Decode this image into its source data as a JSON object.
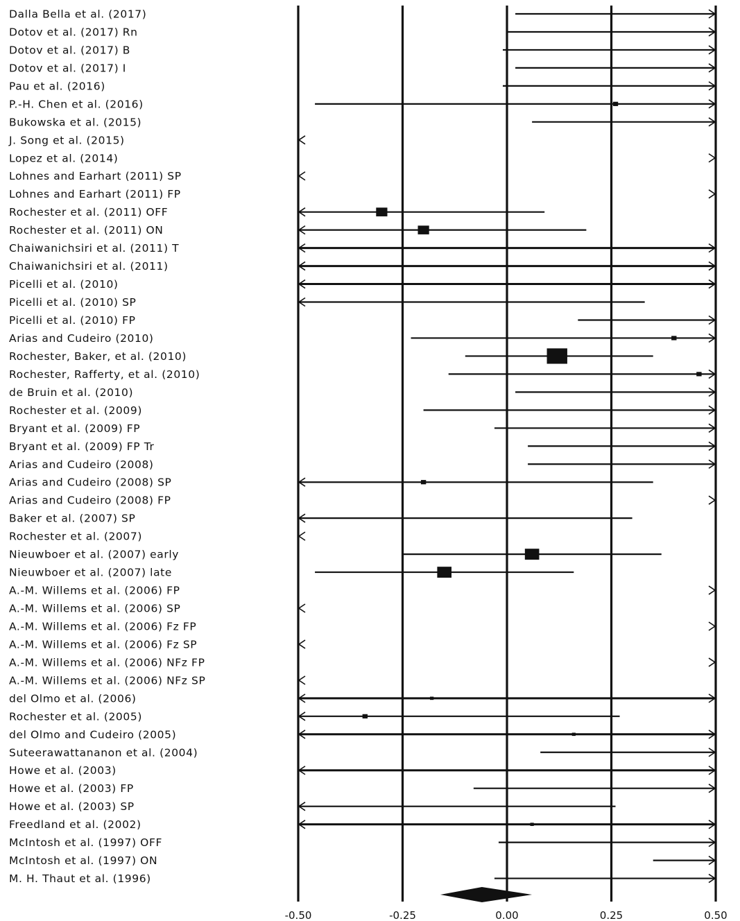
{
  "chart_data": {
    "type": "forest",
    "xlim": [
      -0.5,
      0.5
    ],
    "x_ticks": [
      -0.5,
      -0.25,
      0.0,
      0.25,
      0.5
    ],
    "x_tick_labels": [
      "-0.50",
      "-0.25",
      "0.00",
      "0.25",
      "0.50"
    ],
    "grid": "vertical lines at ticks",
    "studies": [
      {
        "label": "Dalla Bella et al. (2017)",
        "lo": 0.02,
        "hi": 0.5,
        "est": null,
        "w": 0,
        "lo_clip": false,
        "hi_clip": true
      },
      {
        "label": "Dotov et al. (2017) Rn",
        "lo": 0.0,
        "hi": 0.5,
        "est": null,
        "w": 0,
        "lo_clip": false,
        "hi_clip": true
      },
      {
        "label": "Dotov et al. (2017) B",
        "lo": -0.01,
        "hi": 0.5,
        "est": null,
        "w": 0,
        "lo_clip": false,
        "hi_clip": true
      },
      {
        "label": "Dotov et al. (2017) I",
        "lo": 0.02,
        "hi": 0.5,
        "est": null,
        "w": 0,
        "lo_clip": false,
        "hi_clip": true
      },
      {
        "label": "Pau et al. (2016)",
        "lo": -0.01,
        "hi": 0.5,
        "est": null,
        "w": 0,
        "lo_clip": false,
        "hi_clip": true
      },
      {
        "label": "P.-H. Chen et al. (2016)",
        "lo": -0.46,
        "hi": 0.5,
        "est": 0.26,
        "w": 1,
        "lo_clip": false,
        "hi_clip": true
      },
      {
        "label": "Bukowska et al. (2015)",
        "lo": 0.06,
        "hi": 0.5,
        "est": null,
        "w": 0,
        "lo_clip": false,
        "hi_clip": true
      },
      {
        "label": "J. Song et al. (2015)",
        "lo": -0.5,
        "hi": -0.5,
        "est": null,
        "w": 0,
        "lo_clip": true,
        "hi_clip": false
      },
      {
        "label": "Lopez et al. (2014)",
        "lo": 0.5,
        "hi": 0.5,
        "est": null,
        "w": 0,
        "lo_clip": false,
        "hi_clip": true
      },
      {
        "label": "Lohnes and Earhart (2011) SP",
        "lo": -0.5,
        "hi": -0.5,
        "est": null,
        "w": 0,
        "lo_clip": true,
        "hi_clip": false
      },
      {
        "label": "Lohnes and Earhart (2011) FP",
        "lo": 0.5,
        "hi": 0.5,
        "est": null,
        "w": 0,
        "lo_clip": false,
        "hi_clip": true
      },
      {
        "label": "Rochester et al. (2011) OFF",
        "lo": -0.5,
        "hi": 0.09,
        "est": -0.3,
        "w": 3,
        "lo_clip": true,
        "hi_clip": false
      },
      {
        "label": "Rochester et al. (2011) ON",
        "lo": -0.5,
        "hi": 0.19,
        "est": -0.2,
        "w": 3,
        "lo_clip": true,
        "hi_clip": false
      },
      {
        "label": "Chaiwanichsiri et al. (2011) T",
        "lo": -0.5,
        "hi": 0.5,
        "est": null,
        "w": 0,
        "lo_clip": true,
        "hi_clip": true
      },
      {
        "label": "Chaiwanichsiri et al. (2011)",
        "lo": -0.5,
        "hi": 0.5,
        "est": null,
        "w": 0,
        "lo_clip": true,
        "hi_clip": true
      },
      {
        "label": "Picelli et al. (2010)",
        "lo": -0.5,
        "hi": 0.5,
        "est": null,
        "w": 0,
        "lo_clip": true,
        "hi_clip": true
      },
      {
        "label": "Picelli et al. (2010) SP",
        "lo": -0.5,
        "hi": 0.33,
        "est": null,
        "w": 0,
        "lo_clip": true,
        "hi_clip": false
      },
      {
        "label": "Picelli et al. (2010) FP",
        "lo": 0.17,
        "hi": 0.5,
        "est": null,
        "w": 0,
        "lo_clip": false,
        "hi_clip": true
      },
      {
        "label": "Arias and Cudeiro (2010)",
        "lo": -0.23,
        "hi": 0.5,
        "est": 0.4,
        "w": 1,
        "lo_clip": false,
        "hi_clip": true
      },
      {
        "label": "Rochester, Baker, et al. (2010)",
        "lo": -0.1,
        "hi": 0.35,
        "est": 0.12,
        "w": 6,
        "lo_clip": false,
        "hi_clip": false
      },
      {
        "label": "Rochester, Rafferty, et al. (2010)",
        "lo": -0.14,
        "hi": 0.5,
        "est": 0.46,
        "w": 1,
        "lo_clip": false,
        "hi_clip": true
      },
      {
        "label": "de Bruin et al. (2010)",
        "lo": 0.02,
        "hi": 0.5,
        "est": null,
        "w": 0,
        "lo_clip": false,
        "hi_clip": true
      },
      {
        "label": "Rochester et al. (2009)",
        "lo": -0.2,
        "hi": 0.5,
        "est": null,
        "w": 0,
        "lo_clip": false,
        "hi_clip": true
      },
      {
        "label": "Bryant et al. (2009) FP",
        "lo": -0.03,
        "hi": 0.5,
        "est": null,
        "w": 0,
        "lo_clip": false,
        "hi_clip": true
      },
      {
        "label": "Bryant et al. (2009) FP Tr",
        "lo": 0.05,
        "hi": 0.5,
        "est": null,
        "w": 0,
        "lo_clip": false,
        "hi_clip": true
      },
      {
        "label": "Arias and Cudeiro (2008)",
        "lo": 0.05,
        "hi": 0.5,
        "est": null,
        "w": 0,
        "lo_clip": false,
        "hi_clip": true
      },
      {
        "label": "Arias and Cudeiro (2008) SP",
        "lo": -0.5,
        "hi": 0.35,
        "est": -0.2,
        "w": 1,
        "lo_clip": true,
        "hi_clip": false
      },
      {
        "label": "Arias and Cudeiro (2008) FP",
        "lo": 0.5,
        "hi": 0.5,
        "est": null,
        "w": 0,
        "lo_clip": false,
        "hi_clip": true
      },
      {
        "label": "Baker et al. (2007) SP",
        "lo": -0.5,
        "hi": 0.3,
        "est": null,
        "w": 0,
        "lo_clip": true,
        "hi_clip": false
      },
      {
        "label": "Rochester et al. (2007)",
        "lo": -0.5,
        "hi": -0.5,
        "est": null,
        "w": 0,
        "lo_clip": true,
        "hi_clip": false
      },
      {
        "label": "Nieuwboer et al. (2007) early",
        "lo": -0.25,
        "hi": 0.37,
        "est": 0.06,
        "w": 4,
        "lo_clip": false,
        "hi_clip": false
      },
      {
        "label": "Nieuwboer et al. (2007) late",
        "lo": -0.46,
        "hi": 0.16,
        "est": -0.15,
        "w": 4,
        "lo_clip": false,
        "hi_clip": false
      },
      {
        "label": "A.-M. Willems et al. (2006) FP",
        "lo": 0.5,
        "hi": 0.5,
        "est": null,
        "w": 0,
        "lo_clip": false,
        "hi_clip": true
      },
      {
        "label": "A.-M. Willems et al. (2006) SP",
        "lo": -0.5,
        "hi": -0.5,
        "est": null,
        "w": 0,
        "lo_clip": true,
        "hi_clip": false
      },
      {
        "label": "A.-M. Willems et al. (2006) Fz FP",
        "lo": 0.5,
        "hi": 0.5,
        "est": null,
        "w": 0,
        "lo_clip": false,
        "hi_clip": true
      },
      {
        "label": "A.-M. Willems et al. (2006) Fz SP",
        "lo": -0.5,
        "hi": -0.5,
        "est": null,
        "w": 0,
        "lo_clip": true,
        "hi_clip": false
      },
      {
        "label": "A.-M. Willems et al. (2006) NFz FP",
        "lo": 0.5,
        "hi": 0.5,
        "est": null,
        "w": 0,
        "lo_clip": false,
        "hi_clip": true
      },
      {
        "label": "A.-M. Willems et al. (2006) NFz SP",
        "lo": -0.5,
        "hi": -0.5,
        "est": null,
        "w": 0,
        "lo_clip": true,
        "hi_clip": false
      },
      {
        "label": "del Olmo et al. (2006)",
        "lo": -0.5,
        "hi": 0.5,
        "est": -0.18,
        "w": 0.5,
        "lo_clip": true,
        "hi_clip": true
      },
      {
        "label": "Rochester et al. (2005)",
        "lo": -0.5,
        "hi": 0.27,
        "est": -0.34,
        "w": 1,
        "lo_clip": true,
        "hi_clip": false
      },
      {
        "label": "del Olmo and Cudeiro (2005)",
        "lo": -0.5,
        "hi": 0.5,
        "est": 0.16,
        "w": 0.5,
        "lo_clip": true,
        "hi_clip": true
      },
      {
        "label": "Suteerawattananon et al. (2004)",
        "lo": 0.08,
        "hi": 0.5,
        "est": null,
        "w": 0,
        "lo_clip": false,
        "hi_clip": true
      },
      {
        "label": "Howe et al. (2003)",
        "lo": -0.5,
        "hi": 0.5,
        "est": null,
        "w": 0,
        "lo_clip": true,
        "hi_clip": true
      },
      {
        "label": "Howe et al. (2003) FP",
        "lo": -0.08,
        "hi": 0.5,
        "est": null,
        "w": 0,
        "lo_clip": false,
        "hi_clip": true
      },
      {
        "label": "Howe et al. (2003) SP",
        "lo": -0.5,
        "hi": 0.26,
        "est": null,
        "w": 0,
        "lo_clip": true,
        "hi_clip": false
      },
      {
        "label": "Freedland et al. (2002)",
        "lo": -0.5,
        "hi": 0.5,
        "est": 0.06,
        "w": 0.5,
        "lo_clip": true,
        "hi_clip": true
      },
      {
        "label": "McIntosh et al. (1997) OFF",
        "lo": -0.02,
        "hi": 0.5,
        "est": null,
        "w": 0,
        "lo_clip": false,
        "hi_clip": true
      },
      {
        "label": "McIntosh et al. (1997) ON",
        "lo": 0.35,
        "hi": 0.5,
        "est": null,
        "w": 0,
        "lo_clip": false,
        "hi_clip": true
      },
      {
        "label": "M. H. Thaut et al. (1996)",
        "lo": -0.03,
        "hi": 0.5,
        "est": null,
        "w": 0,
        "lo_clip": false,
        "hi_clip": true
      }
    ],
    "summary": {
      "estimate": -0.06,
      "lo": -0.13,
      "hi": 0.03
    }
  }
}
